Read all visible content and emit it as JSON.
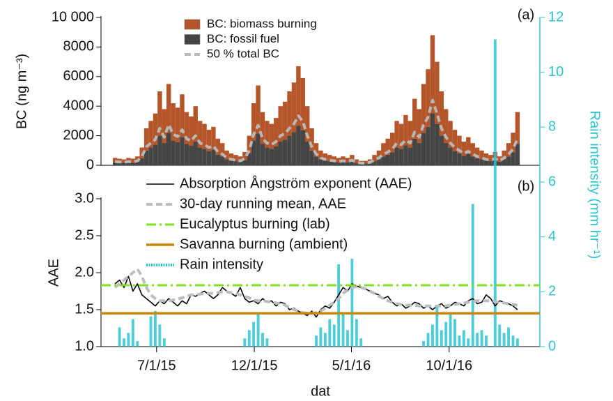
{
  "chart_data": [
    {
      "type": "bar",
      "label": "(a)",
      "y_label": "BC (ng m⁻³)",
      "x": [
        "4/27/15",
        "5/4/15",
        "5/11/15",
        "5/18/15",
        "5/25/15",
        "6/1/15",
        "6/8/15",
        "6/15/15",
        "6/22/15",
        "6/29/15",
        "7/6/15",
        "7/13/15",
        "7/20/15",
        "7/27/15",
        "8/3/15",
        "8/10/15",
        "8/17/15",
        "8/24/15",
        "8/31/15",
        "9/7/15",
        "9/14/15",
        "9/21/15",
        "9/28/15",
        "10/5/15",
        "10/12/15",
        "10/19/15",
        "10/26/15",
        "11/2/15",
        "11/9/15",
        "11/16/15",
        "11/23/15",
        "11/30/15",
        "12/7/15",
        "12/14/15",
        "12/21/15",
        "12/28/15",
        "1/4/16",
        "1/11/16",
        "1/18/16",
        "1/25/16",
        "2/1/16",
        "2/8/16",
        "2/15/16",
        "2/22/16",
        "2/29/16",
        "3/7/16",
        "3/14/16",
        "3/21/16",
        "3/28/16",
        "4/4/16",
        "4/11/16",
        "4/18/16",
        "4/25/16",
        "5/2/16",
        "5/9/16",
        "5/16/16",
        "5/23/16",
        "5/30/16",
        "6/6/16",
        "6/13/16",
        "6/20/16",
        "6/27/16",
        "7/4/16",
        "7/11/16",
        "7/18/16",
        "7/25/16",
        "8/1/16",
        "8/8/16",
        "8/15/16",
        "8/22/16",
        "8/29/16",
        "9/5/16",
        "9/12/16",
        "9/19/16",
        "9/26/16",
        "10/3/16",
        "10/10/16",
        "10/17/16",
        "10/24/16",
        "10/31/16",
        "11/7/16",
        "11/14/16",
        "11/21/16",
        "11/28/16",
        "12/5/16",
        "12/12/16",
        "12/19/16",
        "12/26/16",
        "1/2/17",
        "1/9/17",
        "1/16/17"
      ],
      "xlim": [
        "4/5/15",
        "2/20/17"
      ],
      "ylim": [
        0,
        10000
      ],
      "yticks": [
        0,
        2000,
        4000,
        6000,
        8000,
        {
          "value": 10000,
          "label": "10 000"
        }
      ],
      "series": [
        {
          "name": "BC: biomass burning",
          "color": "#b5562a",
          "style": "bar",
          "values": [
            300,
            270,
            240,
            300,
            270,
            360,
            720,
            1500,
            1800,
            2100,
            3000,
            2280,
            3300,
            2520,
            2340,
            2880,
            2160,
            1980,
            2400,
            1800,
            1680,
            1440,
            1560,
            1080,
            900,
            600,
            480,
            420,
            360,
            540,
            1200,
            2520,
            3240,
            2160,
            1800,
            1680,
            1920,
            2400,
            2580,
            3000,
            3360,
            4020,
            3540,
            2400,
            1500,
            900,
            600,
            480,
            420,
            360,
            300,
            360,
            300,
            420,
            240,
            180,
            180,
            240,
            420,
            600,
            900,
            1080,
            1320,
            1800,
            1680,
            2040,
            1800,
            2700,
            2280,
            3300,
            3900,
            5280,
            4200,
            3000,
            2280,
            1800,
            1440,
            1200,
            960,
            1140,
            900,
            720,
            600,
            480,
            420,
            540,
            360,
            600,
            900,
            1320,
            2160
          ]
        },
        {
          "name": "BC: fossil fuel",
          "color": "#454545",
          "style": "bar",
          "values": [
            200,
            180,
            160,
            200,
            180,
            240,
            480,
            1000,
            1200,
            1400,
            2000,
            1520,
            2200,
            1680,
            1560,
            1920,
            1440,
            1320,
            1600,
            1200,
            1120,
            960,
            1040,
            720,
            600,
            400,
            320,
            280,
            240,
            360,
            800,
            1680,
            2160,
            1440,
            1200,
            1120,
            1280,
            1600,
            1720,
            2000,
            2240,
            2680,
            2360,
            1600,
            1000,
            600,
            400,
            320,
            280,
            240,
            200,
            240,
            200,
            280,
            160,
            120,
            120,
            160,
            280,
            400,
            600,
            720,
            880,
            1200,
            1120,
            1360,
            1200,
            1800,
            1520,
            2200,
            2600,
            3520,
            2800,
            2000,
            1520,
            1200,
            960,
            800,
            640,
            760,
            600,
            480,
            400,
            320,
            280,
            360,
            240,
            400,
            600,
            880,
            1440
          ]
        },
        {
          "name": "50 % total BC",
          "color": "#b8b8b8",
          "style": "dashed",
          "values": [
            250,
            225,
            200,
            250,
            225,
            300,
            600,
            1250,
            1500,
            1750,
            2500,
            1900,
            2750,
            2100,
            1950,
            2400,
            1800,
            1650,
            2000,
            1500,
            1400,
            1200,
            1300,
            900,
            750,
            500,
            400,
            350,
            300,
            450,
            1000,
            2100,
            2700,
            1800,
            1500,
            1400,
            1600,
            2000,
            2150,
            2500,
            2800,
            3350,
            2950,
            2000,
            1250,
            750,
            500,
            400,
            350,
            300,
            250,
            300,
            250,
            350,
            200,
            150,
            150,
            200,
            350,
            500,
            750,
            900,
            1100,
            1500,
            1400,
            1700,
            1500,
            2250,
            1900,
            2750,
            3250,
            4400,
            3500,
            2500,
            1900,
            1500,
            1200,
            1000,
            800,
            950,
            750,
            600,
            500,
            400,
            350,
            450,
            300,
            500,
            750,
            1100,
            1800
          ]
        }
      ]
    },
    {
      "type": "line",
      "label": "(b)",
      "y_label": "AAE",
      "x_label": "dat",
      "y2_label": "Rain intensity (mm hr⁻¹)",
      "x": [
        "4/27/15",
        "5/4/15",
        "5/11/15",
        "5/18/15",
        "5/25/15",
        "6/1/15",
        "6/8/15",
        "6/15/15",
        "6/22/15",
        "6/29/15",
        "7/6/15",
        "7/13/15",
        "7/20/15",
        "7/27/15",
        "8/3/15",
        "8/10/15",
        "8/17/15",
        "8/24/15",
        "8/31/15",
        "9/7/15",
        "9/14/15",
        "9/21/15",
        "9/28/15",
        "10/5/15",
        "10/12/15",
        "10/19/15",
        "10/26/15",
        "11/2/15",
        "11/9/15",
        "11/16/15",
        "11/23/15",
        "11/30/15",
        "12/7/15",
        "12/14/15",
        "12/21/15",
        "12/28/15",
        "1/4/16",
        "1/11/16",
        "1/18/16",
        "1/25/16",
        "2/1/16",
        "2/8/16",
        "2/15/16",
        "2/22/16",
        "2/29/16",
        "3/7/16",
        "3/14/16",
        "3/21/16",
        "3/28/16",
        "4/4/16",
        "4/11/16",
        "4/18/16",
        "4/25/16",
        "5/2/16",
        "5/9/16",
        "5/16/16",
        "5/23/16",
        "5/30/16",
        "6/6/16",
        "6/13/16",
        "6/20/16",
        "6/27/16",
        "7/4/16",
        "7/11/16",
        "7/18/16",
        "7/25/16",
        "8/1/16",
        "8/8/16",
        "8/15/16",
        "8/22/16",
        "8/29/16",
        "9/5/16",
        "9/12/16",
        "9/19/16",
        "9/26/16",
        "10/3/16",
        "10/10/16",
        "10/17/16",
        "10/24/16",
        "10/31/16",
        "11/7/16",
        "11/14/16",
        "11/21/16",
        "11/28/16",
        "12/5/16",
        "12/12/16",
        "12/19/16",
        "12/26/16",
        "1/2/17",
        "1/9/17",
        "1/16/17"
      ],
      "xlim": [
        "4/5/15",
        "2/20/17"
      ],
      "xticks": [
        "7/1/15",
        "12/1/15",
        "5/1/16",
        "10/1/16"
      ],
      "ylim": [
        1,
        3
      ],
      "yticks": [
        {
          "value": 1,
          "label": "1.0"
        },
        1.5,
        {
          "value": 2,
          "label": "2.0"
        },
        2.5,
        {
          "value": 3,
          "label": "3.0"
        }
      ],
      "y2lim": [
        0,
        12
      ],
      "y2ticks": [
        0,
        2,
        4,
        6,
        8,
        10,
        12
      ],
      "series": [
        {
          "name": "Absorption Ångström exponent (AAE)",
          "color": "#000000",
          "style": "solid",
          "values": [
            1.85,
            1.9,
            1.8,
            1.95,
            1.75,
            1.85,
            1.7,
            1.65,
            1.6,
            1.55,
            1.62,
            1.58,
            1.65,
            1.6,
            1.55,
            1.62,
            1.58,
            1.7,
            1.68,
            1.72,
            1.75,
            1.7,
            1.65,
            1.7,
            1.8,
            1.75,
            1.72,
            1.68,
            1.8,
            1.65,
            1.6,
            1.62,
            1.58,
            1.65,
            1.6,
            1.62,
            1.55,
            1.6,
            1.58,
            1.5,
            1.52,
            1.48,
            1.45,
            1.42,
            1.48,
            1.4,
            1.5,
            1.55,
            1.52,
            1.6,
            1.7,
            1.8,
            1.75,
            1.85,
            1.82,
            1.8,
            1.78,
            1.75,
            1.72,
            1.7,
            1.65,
            1.68,
            1.6,
            1.55,
            1.58,
            1.52,
            1.55,
            1.6,
            1.58,
            1.52,
            1.55,
            1.5,
            1.55,
            1.58,
            1.52,
            1.55,
            1.6,
            1.58,
            1.55,
            1.62,
            1.65,
            1.58,
            1.6,
            1.7,
            1.65,
            1.55,
            1.62,
            1.6,
            1.58,
            1.55,
            1.5
          ]
        },
        {
          "name": "30-day running mean, AAE",
          "color": "#bdbdbd",
          "style": "dashed",
          "values": [
            1.8,
            1.85,
            1.9,
            1.95,
            2.0,
            2.05,
            1.95,
            1.8,
            1.7,
            1.65,
            1.62,
            1.62,
            1.62,
            1.63,
            1.64,
            1.66,
            1.68,
            1.7,
            1.7,
            1.71,
            1.72,
            1.72,
            1.72,
            1.73,
            1.74,
            1.74,
            1.73,
            1.72,
            1.7,
            1.68,
            1.66,
            1.63,
            1.62,
            1.62,
            1.61,
            1.6,
            1.59,
            1.58,
            1.56,
            1.53,
            1.5,
            1.48,
            1.46,
            1.45,
            1.45,
            1.46,
            1.48,
            1.52,
            1.56,
            1.6,
            1.65,
            1.72,
            1.77,
            1.8,
            1.81,
            1.8,
            1.78,
            1.75,
            1.72,
            1.68,
            1.65,
            1.62,
            1.6,
            1.58,
            1.57,
            1.56,
            1.56,
            1.56,
            1.55,
            1.55,
            1.55,
            1.55,
            1.55,
            1.55,
            1.55,
            1.56,
            1.57,
            1.58,
            1.59,
            1.6,
            1.61,
            1.62,
            1.62,
            1.62,
            1.62,
            1.61,
            1.6,
            1.59,
            1.58,
            1.57,
            1.56
          ]
        },
        {
          "name": "Eucalyptus burning (lab)",
          "color": "#80e020",
          "style": "dashdot",
          "value": 1.83
        },
        {
          "name": "Savanna burning (ambient)",
          "color": "#c8870c",
          "style": "solid-thick",
          "value": 1.45
        },
        {
          "name": "Rain intensity",
          "color": "#2dc6cf",
          "style": "bar",
          "axis": "y2",
          "values": [
            0,
            0.7,
            0.3,
            0.5,
            1.0,
            0.2,
            0,
            0,
            1.1,
            1.3,
            0.8,
            0.3,
            0,
            0,
            0,
            0,
            0,
            0,
            0,
            0,
            0,
            0,
            0,
            0,
            0,
            0,
            0,
            0,
            0,
            0.3,
            0.6,
            0.9,
            1.2,
            0.5,
            0.3,
            0,
            0,
            0,
            0,
            0,
            0,
            0,
            0,
            0,
            0,
            0.4,
            0.7,
            0.5,
            1.0,
            0.8,
            3.0,
            1.2,
            0.6,
            3.2,
            1.0,
            0.3,
            0,
            0,
            0,
            0,
            0,
            0,
            0,
            0,
            0,
            0,
            0,
            0,
            0,
            0.2,
            0.5,
            0.8,
            1.5,
            0.6,
            0.9,
            1.2,
            1.0,
            0.4,
            0.6,
            0.3,
            5.2,
            0.5,
            0.6,
            0.4,
            0,
            11.2,
            0.8,
            0.5,
            0.7,
            0.4,
            0.3
          ]
        }
      ]
    }
  ]
}
